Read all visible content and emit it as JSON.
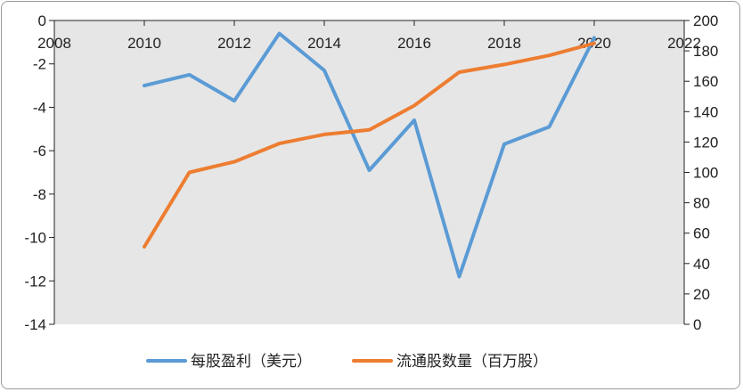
{
  "chart_data": {
    "type": "line",
    "title": "",
    "xlabel": "",
    "ylabel": "",
    "x_ticks": [
      "2008",
      "2010",
      "2012",
      "2014",
      "2016",
      "2018",
      "2020",
      "2022"
    ],
    "xlim": [
      2008,
      2022
    ],
    "ylim_left": [
      -14,
      0
    ],
    "ylim_right": [
      0,
      200
    ],
    "y_ticks_left": [
      "0",
      "-2",
      "-4",
      "-6",
      "-8",
      "-10",
      "-12",
      "-14"
    ],
    "y_ticks_right": [
      "200",
      "180",
      "160",
      "140",
      "120",
      "100",
      "80",
      "60",
      "40",
      "20",
      "0"
    ],
    "grid": false,
    "legend_position": "bottom",
    "series": [
      {
        "name": "每股盈利（美元）",
        "axis": "left",
        "color": "#5b9bd5",
        "x": [
          2010,
          2011,
          2012,
          2013,
          2014,
          2015,
          2016,
          2017,
          2018,
          2019,
          2020
        ],
        "values": [
          -3.0,
          -2.5,
          -3.7,
          -0.6,
          -2.3,
          -6.9,
          -4.6,
          -11.8,
          -5.7,
          -4.9,
          -0.8
        ]
      },
      {
        "name": "流通股数量（百万股）",
        "axis": "right",
        "color": "#ed7d31",
        "x": [
          2010,
          2011,
          2012,
          2013,
          2014,
          2015,
          2016,
          2017,
          2018,
          2019,
          2020
        ],
        "values": [
          51,
          100,
          107,
          119,
          125,
          128,
          144,
          166,
          171,
          177,
          185
        ]
      }
    ]
  }
}
